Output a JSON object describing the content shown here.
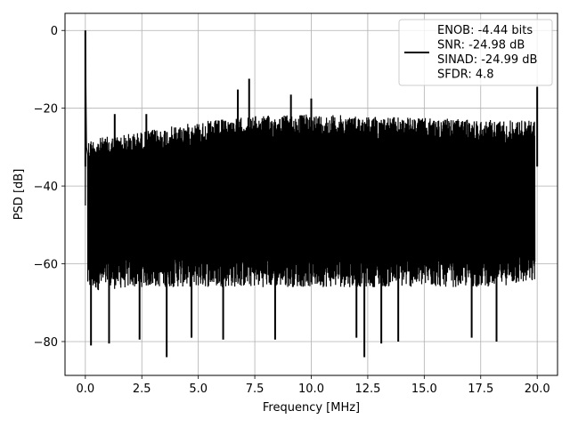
{
  "chart_data": {
    "type": "line",
    "title": "",
    "xlabel": "Frequency [MHz]",
    "ylabel": "PSD [dB]",
    "xlim": [
      -0.9,
      20.9
    ],
    "ylim": [
      -88.7,
      4.4
    ],
    "grid": true,
    "xticks": [
      0.0,
      2.5,
      5.0,
      7.5,
      10.0,
      12.5,
      15.0,
      17.5,
      20.0
    ],
    "xtick_labels": [
      "0.0",
      "2.5",
      "5.0",
      "7.5",
      "10.0",
      "12.5",
      "15.0",
      "17.5",
      "20.0"
    ],
    "yticks": [
      0,
      -20,
      -40,
      -60,
      -80
    ],
    "ytick_labels": [
      "0",
      "−20",
      "−40",
      "−60",
      "−80"
    ],
    "legend": {
      "placement": "top-right",
      "entries": [
        "ENOB: -4.44 bits",
        "SNR: -24.98 dB",
        "SINAD: -24.99 dB",
        "SFDR: 4.8"
      ]
    },
    "series": [
      {
        "color": "#000000",
        "description": "Dense noise-floor PSD spanning 0 to 20 MHz with a DC spike and several spurs",
        "envelope": {
          "x": [
            0.1,
            2.5,
            5.0,
            7.5,
            10.0,
            12.5,
            15.0,
            17.5,
            19.9
          ],
          "upper": [
            -28,
            -26,
            -23.5,
            -22,
            -21.5,
            -22,
            -22.5,
            -23,
            -23
          ],
          "lower": [
            -67,
            -66,
            -66,
            -66,
            -66,
            -66,
            -66,
            -66,
            -65
          ]
        },
        "peaks": [
          {
            "x": 0.0,
            "y": 0.0
          },
          {
            "x": 1.3,
            "y": -21.5
          },
          {
            "x": 2.7,
            "y": -21.5
          },
          {
            "x": 6.75,
            "y": -15.2
          },
          {
            "x": 7.25,
            "y": -12.4
          },
          {
            "x": 9.1,
            "y": -16.5
          },
          {
            "x": 10.0,
            "y": -17.5
          },
          {
            "x": 20.0,
            "y": -14.5
          }
        ],
        "dips": [
          {
            "x": 0.25,
            "y": -81.0
          },
          {
            "x": 1.05,
            "y": -80.5
          },
          {
            "x": 2.4,
            "y": -79.5
          },
          {
            "x": 3.6,
            "y": -84.0
          },
          {
            "x": 4.7,
            "y": -79.0
          },
          {
            "x": 6.1,
            "y": -79.5
          },
          {
            "x": 8.4,
            "y": -79.5
          },
          {
            "x": 12.0,
            "y": -79.0
          },
          {
            "x": 12.35,
            "y": -84.0
          },
          {
            "x": 13.1,
            "y": -80.5
          },
          {
            "x": 13.85,
            "y": -80.0
          },
          {
            "x": 17.1,
            "y": -79.0
          },
          {
            "x": 18.2,
            "y": -80.0
          }
        ]
      }
    ]
  }
}
